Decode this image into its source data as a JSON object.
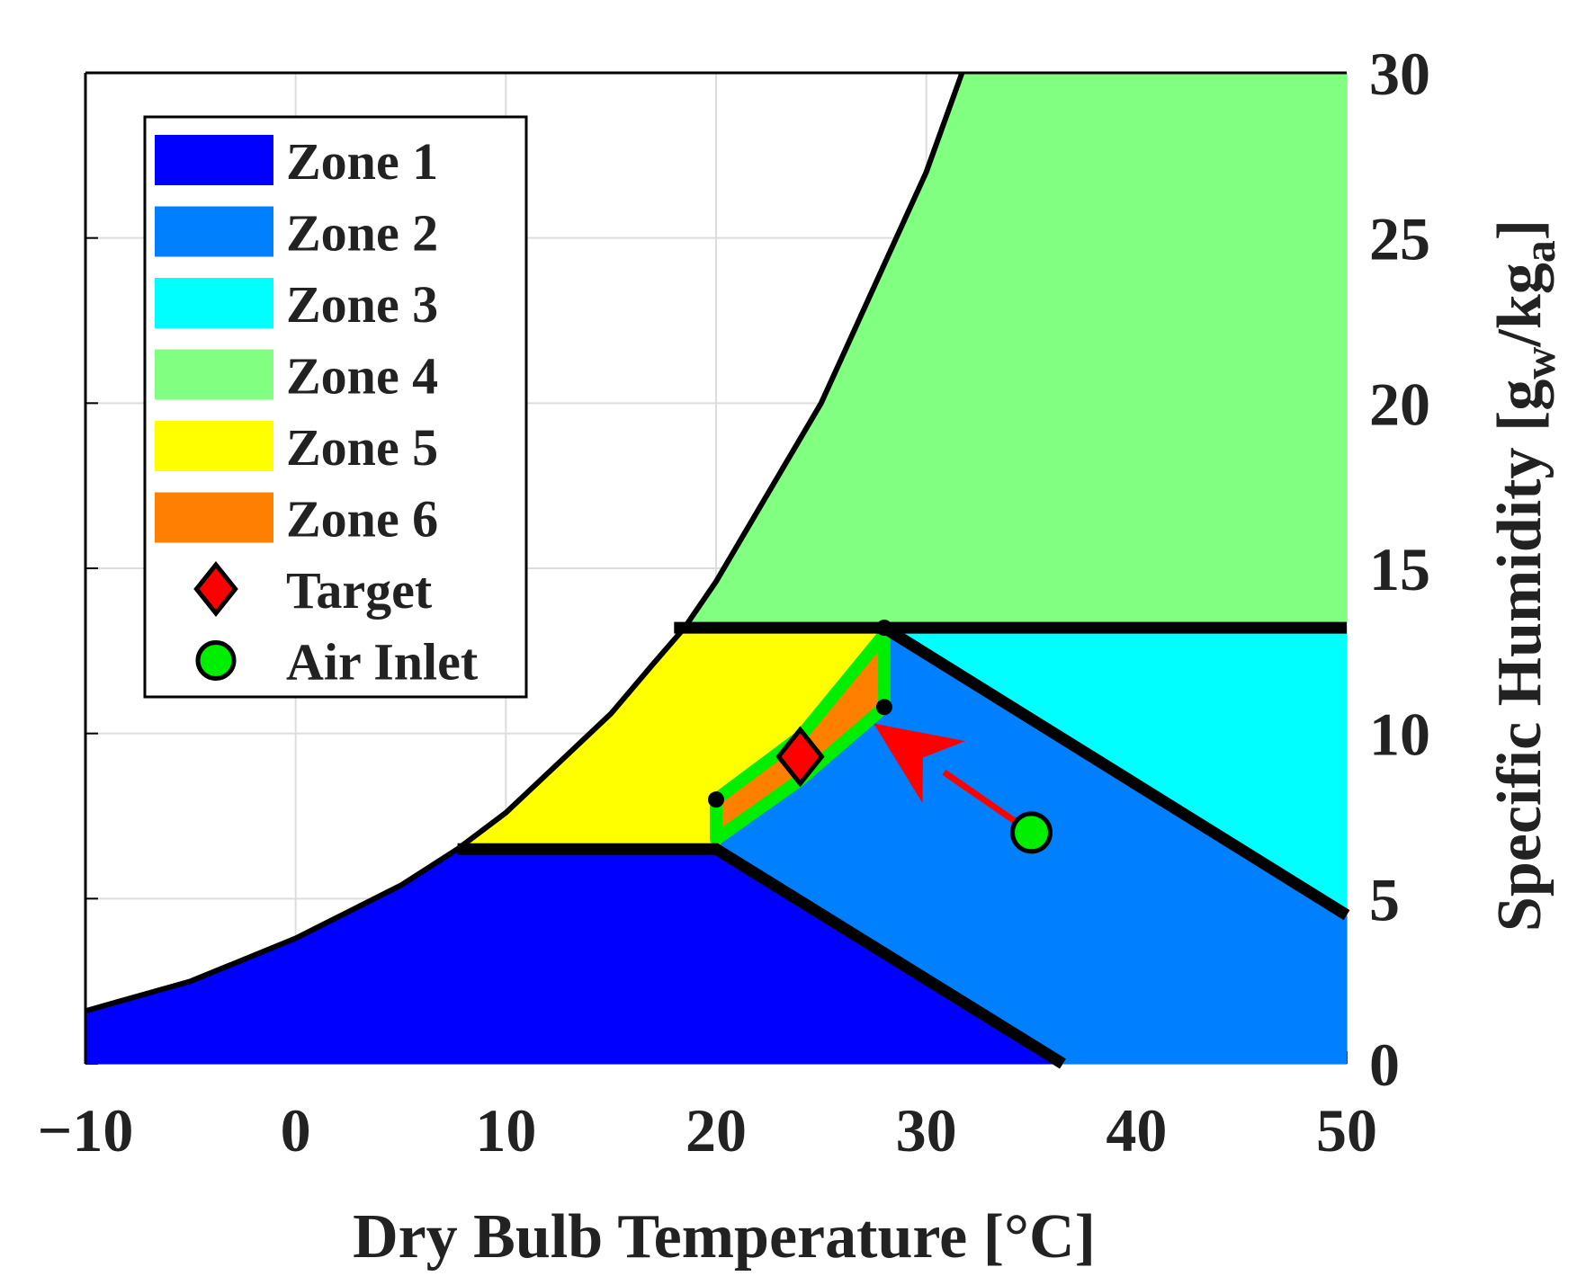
{
  "chart_data": {
    "type": "area",
    "xlabel": "Dry Bulb Temperature [°C]",
    "ylabel": {
      "main": "Specific Humidity [g",
      "sub1": "w",
      "mid": "/kg",
      "sub2": "a",
      "end": "]"
    },
    "xlim": [
      -10,
      50
    ],
    "ylim": [
      0,
      30
    ],
    "xticks": [
      -10,
      0,
      10,
      20,
      30,
      40,
      50
    ],
    "xtick_labels": [
      "−10",
      "0",
      "10",
      "20",
      "30",
      "40",
      "50"
    ],
    "yticks": [
      0,
      5,
      10,
      15,
      20,
      25,
      30
    ],
    "ytick_labels": [
      "0",
      "5",
      "10",
      "15",
      "20",
      "25",
      "30"
    ],
    "y_axis_side": "right",
    "grid": true,
    "legend_position": "top-left",
    "saturation_curve": [
      [
        -10,
        1.6
      ],
      [
        -5,
        2.5
      ],
      [
        0,
        3.8
      ],
      [
        5,
        5.4
      ],
      [
        7.7,
        6.5
      ],
      [
        10,
        7.6
      ],
      [
        15,
        10.6
      ],
      [
        17,
        12.1
      ],
      [
        18.5,
        13.2
      ],
      [
        20,
        14.6
      ],
      [
        25,
        20.0
      ],
      [
        30,
        27.0
      ],
      [
        31.7,
        30
      ]
    ],
    "zones": [
      {
        "name": "Zone 1",
        "color": "#0000ff",
        "polygon": [
          [
            -10,
            1.6
          ],
          [
            -5,
            2.5
          ],
          [
            0,
            3.8
          ],
          [
            5,
            5.4
          ],
          [
            7.7,
            6.5
          ],
          [
            20,
            6.5
          ],
          [
            36.5,
            0
          ],
          [
            -10,
            0
          ]
        ]
      },
      {
        "name": "Zone 2",
        "color": "#0080ff",
        "polygon": [
          [
            20,
            6.5
          ],
          [
            28,
            13.2
          ],
          [
            50,
            4.5
          ],
          [
            50,
            0
          ],
          [
            36.5,
            0
          ]
        ]
      },
      {
        "name": "Zone 3",
        "color": "#00ffff",
        "polygon": [
          [
            28,
            13.2
          ],
          [
            50,
            13.2
          ],
          [
            50,
            4.5
          ]
        ]
      },
      {
        "name": "Zone 4",
        "color": "#80ff80",
        "polygon": [
          [
            18.5,
            13.2
          ],
          [
            20,
            14.6
          ],
          [
            25,
            20.0
          ],
          [
            30,
            27.0
          ],
          [
            31.7,
            30
          ],
          [
            50,
            30
          ],
          [
            50,
            13.2
          ]
        ]
      },
      {
        "name": "Zone 5",
        "color": "#ffff00",
        "polygon": [
          [
            7.7,
            6.5
          ],
          [
            10,
            7.6
          ],
          [
            15,
            10.6
          ],
          [
            17,
            12.1
          ],
          [
            18.5,
            13.2
          ],
          [
            28,
            13.2
          ],
          [
            20,
            6.5
          ]
        ]
      },
      {
        "name": "Zone 6",
        "color": "#ff8000",
        "polygon": [
          [
            20,
            8.0
          ],
          [
            24,
            9.9
          ],
          [
            28,
            13.0
          ],
          [
            28,
            10.8
          ],
          [
            24,
            8.6
          ],
          [
            20,
            6.8
          ]
        ]
      }
    ],
    "boundaries": [
      [
        [
          7.7,
          6.5
        ],
        [
          20,
          6.5
        ],
        [
          36.5,
          0
        ]
      ],
      [
        [
          18,
          13.2
        ],
        [
          50,
          13.2
        ]
      ],
      [
        [
          28,
          13.2
        ],
        [
          50,
          4.5
        ]
      ]
    ],
    "corner_points": [
      [
        20,
        8.0
      ],
      [
        28,
        10.8
      ],
      [
        28,
        13.2
      ]
    ],
    "series": [
      {
        "name": "Target",
        "marker": "diamond",
        "color": "#ff0000",
        "x": 24,
        "y": 9.3
      },
      {
        "name": "Air Inlet",
        "marker": "circle",
        "color": "#00ee00",
        "x": 35,
        "y": 7.0
      }
    ],
    "arrow": {
      "from": [
        35,
        7.0
      ],
      "to": [
        27.5,
        10.3
      ],
      "color": "#ff0000"
    },
    "legend": [
      {
        "label": "Zone 1",
        "kind": "patch",
        "color": "#0000ff"
      },
      {
        "label": "Zone 2",
        "kind": "patch",
        "color": "#0080ff"
      },
      {
        "label": "Zone 3",
        "kind": "patch",
        "color": "#00ffff"
      },
      {
        "label": "Zone 4",
        "kind": "patch",
        "color": "#80ff80"
      },
      {
        "label": "Zone 5",
        "kind": "patch",
        "color": "#ffff00"
      },
      {
        "label": "Zone 6",
        "kind": "patch",
        "color": "#ff8000"
      },
      {
        "label": "Target",
        "kind": "diamond",
        "color": "#ff0000"
      },
      {
        "label": "Air Inlet",
        "kind": "circle",
        "color": "#00ee00"
      }
    ]
  }
}
